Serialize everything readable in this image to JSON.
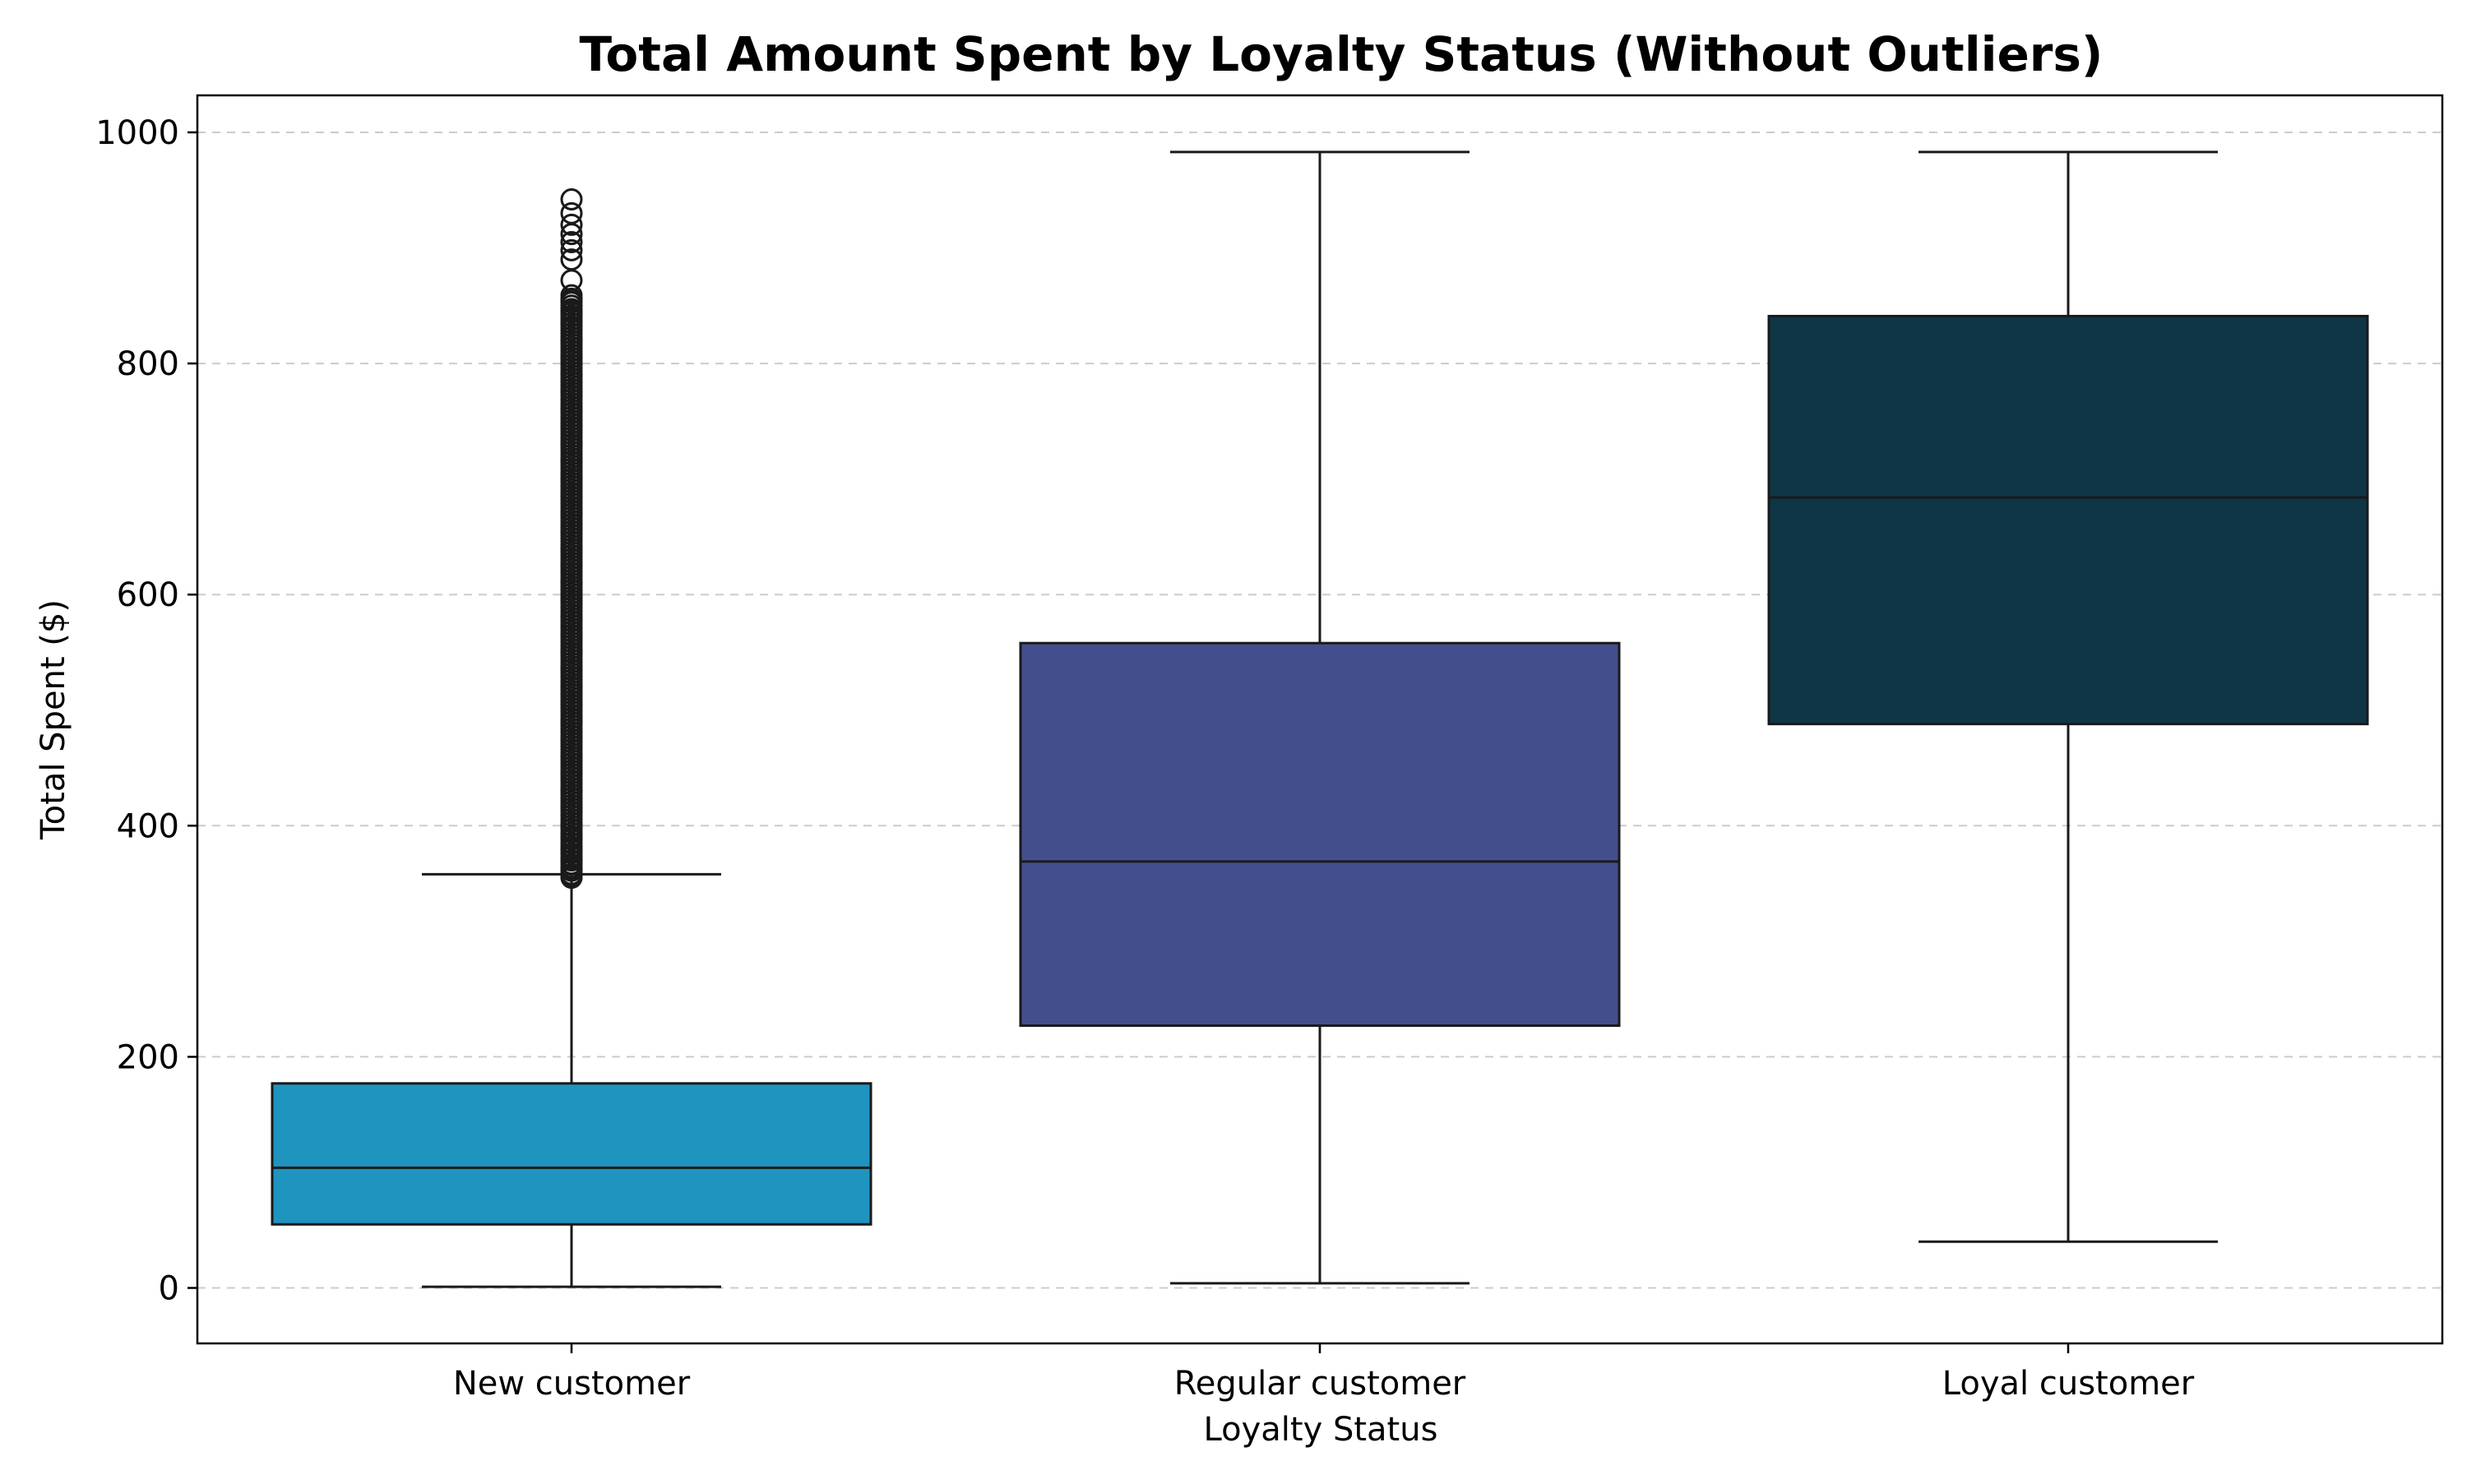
{
  "chart_data": {
    "type": "box",
    "title": "Total Amount Spent by Loyalty Status (Without Outliers)",
    "xlabel": "Loyalty Status",
    "ylabel": "Total Spent ($)",
    "ylim": [
      -48,
      1032
    ],
    "yticks": [
      0,
      200,
      400,
      600,
      800,
      1000
    ],
    "grid": "y, dashed",
    "categories": [
      "New customer",
      "Regular customer",
      "Loyal customer"
    ],
    "boxes": [
      {
        "category": "New customer",
        "color": "#1f94bf",
        "whisker_low": 1,
        "q1": 55,
        "median": 104,
        "q3": 177,
        "whisker_high": 358,
        "outliers_range": [
          355,
          942
        ],
        "outliers_sample": [
          942,
          930,
          920,
          912,
          905,
          898,
          890,
          872,
          855,
          845,
          835,
          820,
          805,
          790,
          775,
          760,
          745,
          730,
          715,
          700,
          685,
          670,
          655,
          640,
          625,
          610,
          595,
          580,
          565,
          550,
          535,
          520,
          505,
          490,
          475,
          460,
          445,
          430,
          415,
          400,
          390,
          380,
          370,
          362,
          356
        ]
      },
      {
        "category": "Regular customer",
        "color": "#434f8d",
        "whisker_low": 4,
        "q1": 227,
        "median": 369,
        "q3": 558,
        "whisker_high": 983
      },
      {
        "category": "Loyal customer",
        "color": "#0f3646",
        "whisker_low": 40,
        "q1": 488,
        "median": 684,
        "q3": 841,
        "whisker_high": 983
      }
    ]
  }
}
